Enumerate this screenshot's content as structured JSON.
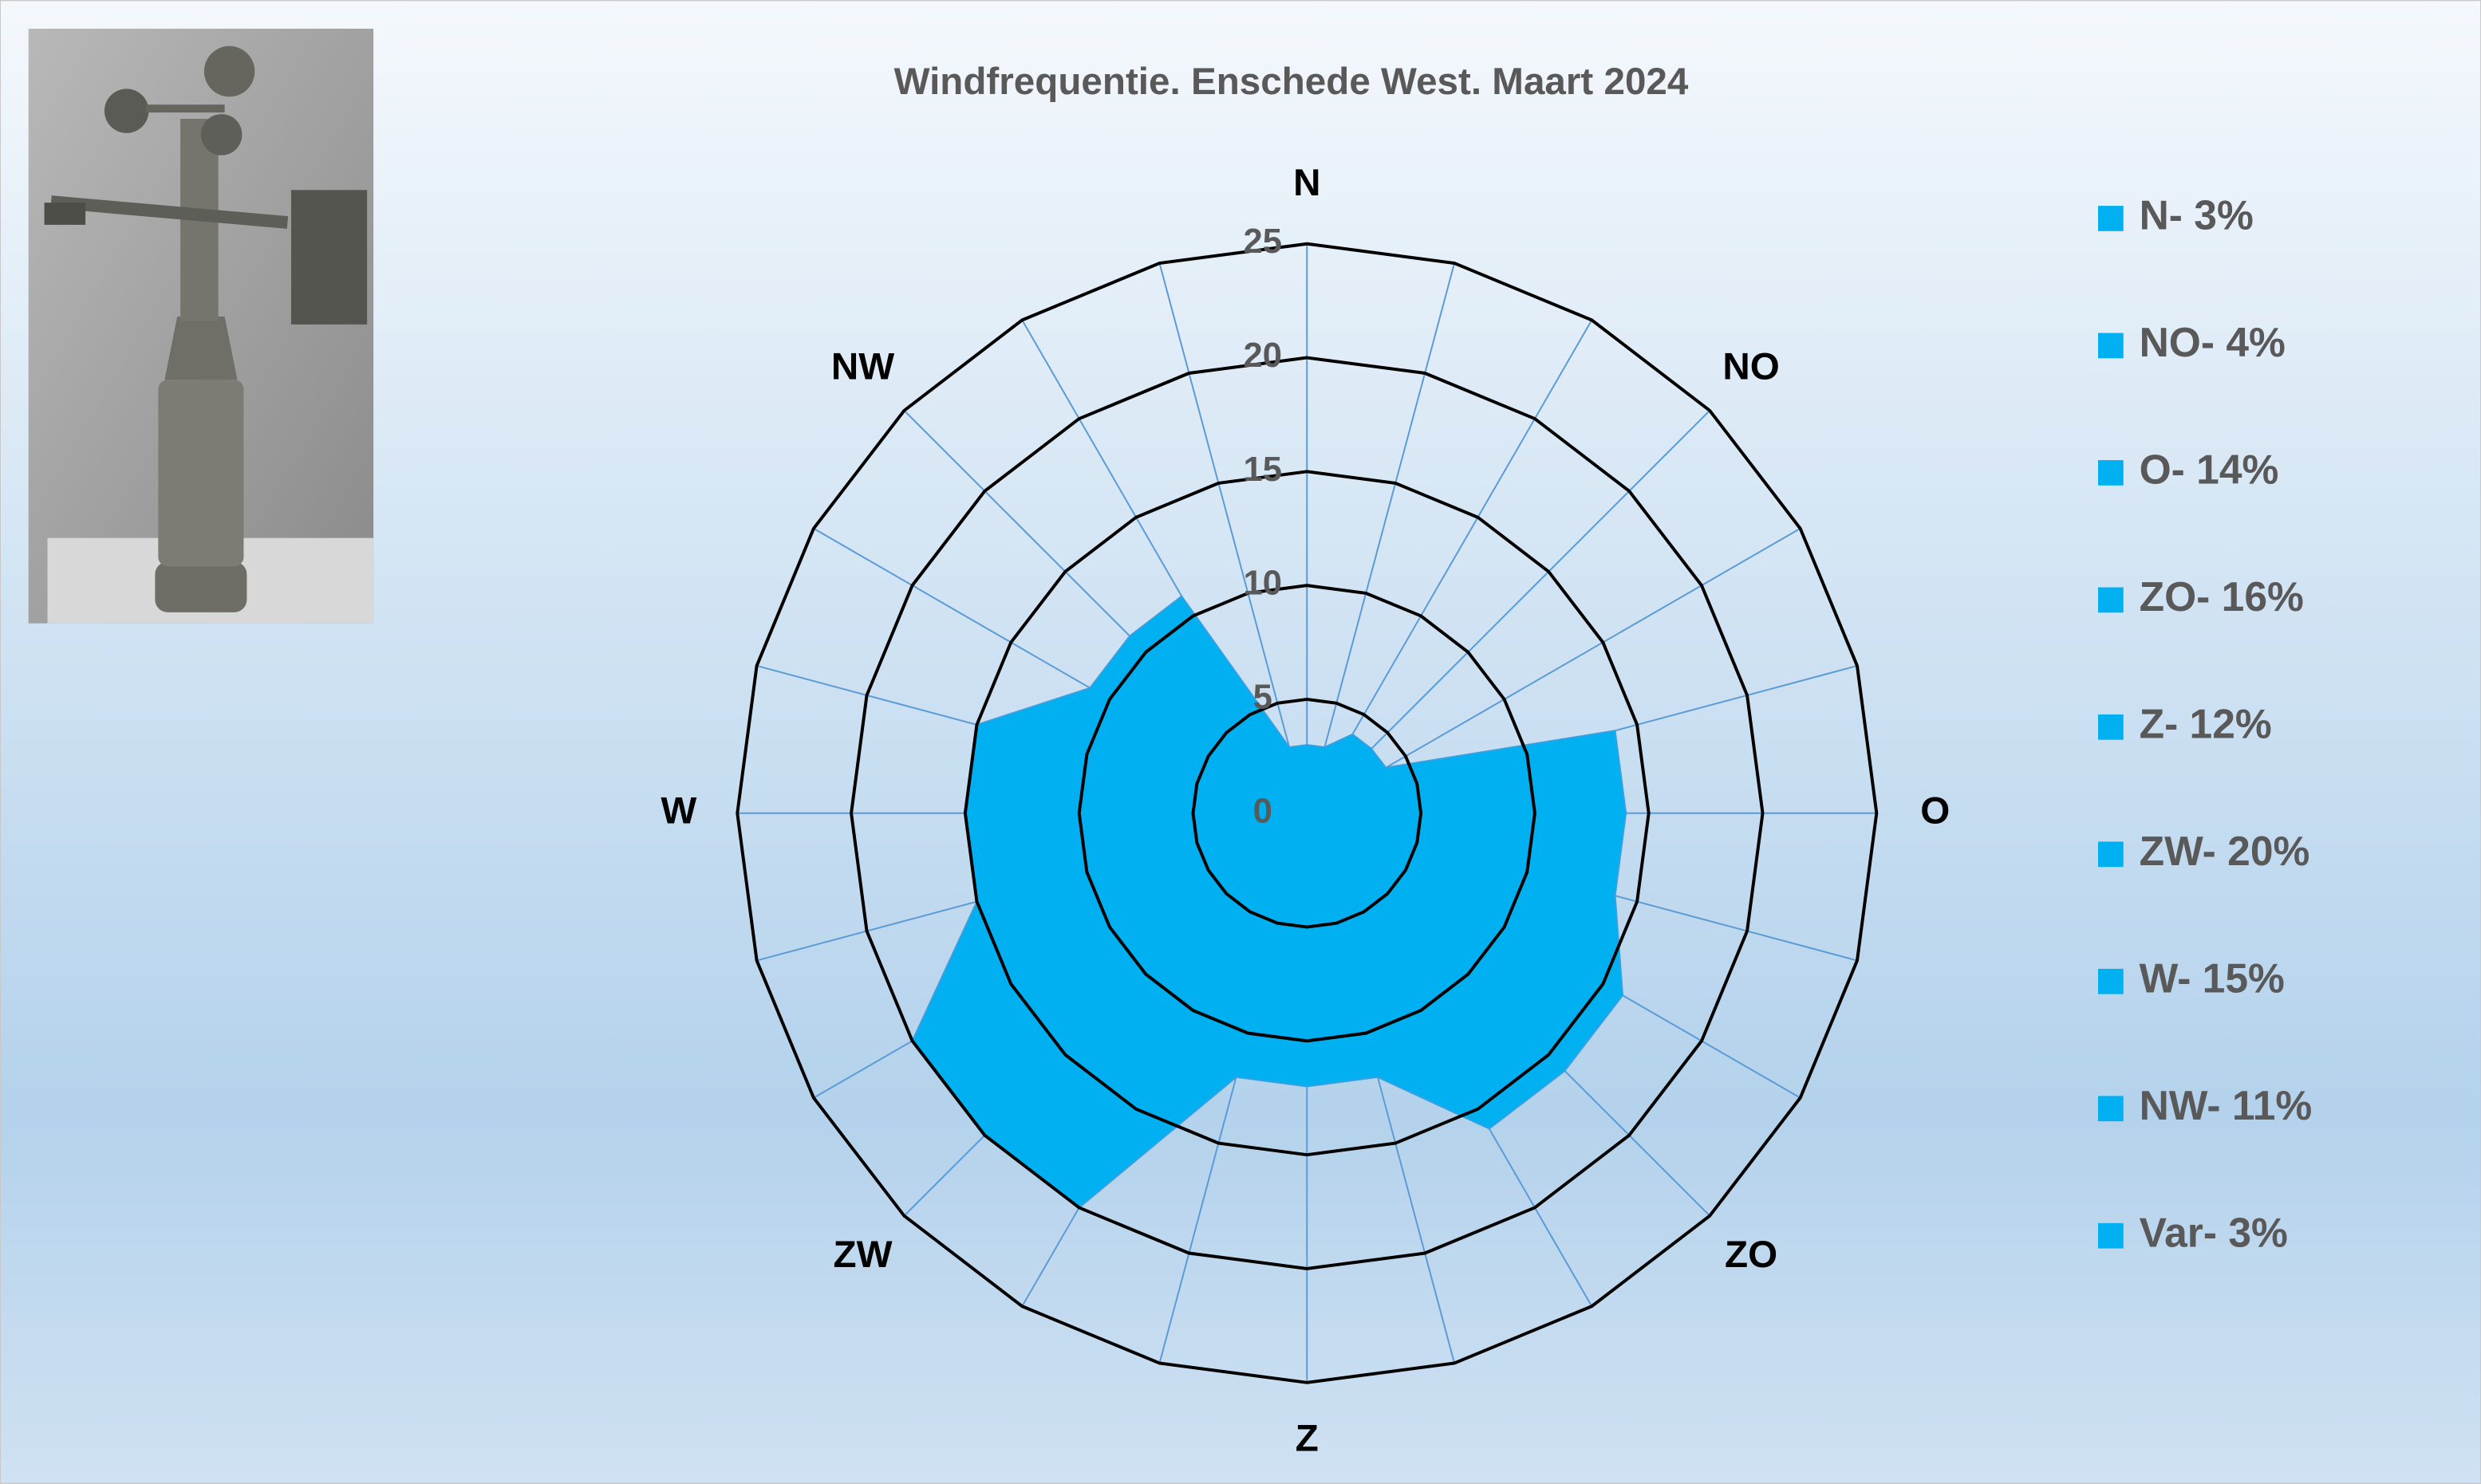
{
  "chart_data": {
    "type": "radar",
    "title": "Windfrequentie. Enschede West. Maart 2024",
    "categories": [
      "N",
      null,
      null,
      "NO",
      null,
      null,
      "O",
      null,
      null,
      "ZO",
      null,
      null,
      "Z",
      null,
      null,
      "ZW",
      null,
      null,
      "W",
      null,
      null,
      "NW",
      null,
      null
    ],
    "values": [
      3,
      3,
      4,
      4,
      4,
      14,
      14,
      14,
      16,
      16,
      16,
      12,
      12,
      12,
      20,
      20,
      20,
      15,
      15,
      15,
      11,
      11,
      11,
      3
    ],
    "color": "#00b0f0",
    "ylim": [
      0,
      25
    ],
    "yticks": [
      0,
      5,
      10,
      15,
      20,
      25
    ],
    "grid": true,
    "legend": [
      "N- 3%",
      "NO- 4%",
      "O- 14%",
      "ZO- 16%",
      "Z- 12%",
      "ZW- 20%",
      "W- 15%",
      "NW- 11%",
      "Var- 3%"
    ],
    "legend_position": "right"
  }
}
